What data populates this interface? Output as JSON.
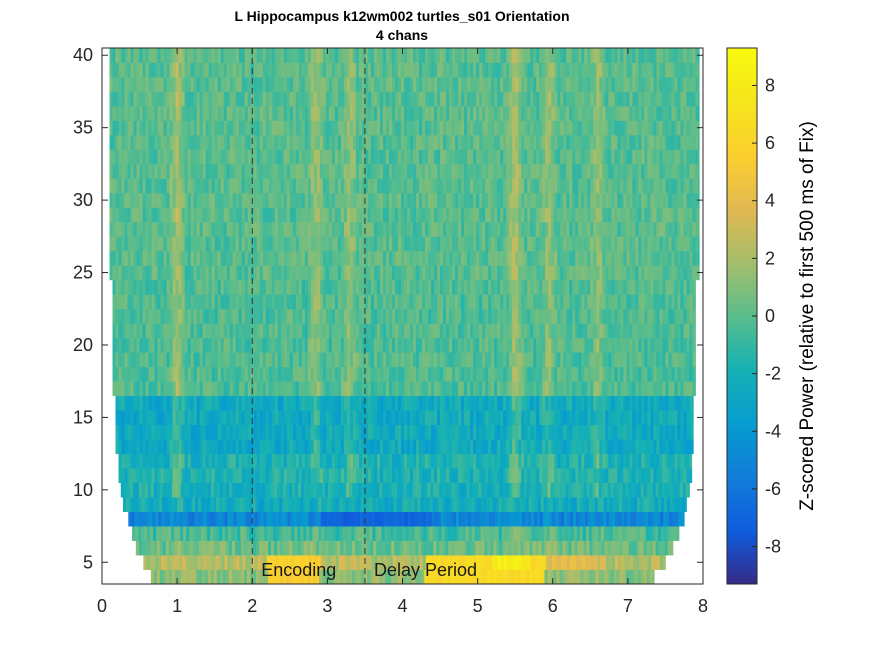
{
  "chart_data": {
    "type": "heatmap",
    "title_line1": "L Hippocampus k12wm002 turtles_s01 Orientation",
    "title_line2": "4 chans",
    "xlabel": "",
    "ylabel": "",
    "xlim": [
      0,
      8
    ],
    "ylim": [
      3.5,
      40.5
    ],
    "x_ticks": [
      0,
      1,
      2,
      3,
      4,
      5,
      6,
      7,
      8
    ],
    "y_ticks": [
      5,
      10,
      15,
      20,
      25,
      30,
      35,
      40
    ],
    "colorbar": {
      "label": "Z-scored Power (relative to first 500 ms of Fix)",
      "range": [
        -9.3,
        9.3
      ],
      "ticks": [
        -8,
        -6,
        -4,
        -2,
        0,
        2,
        4,
        6,
        8
      ],
      "colormap": "parula"
    },
    "event_lines": [
      {
        "x": 2.0,
        "label": "Encoding"
      },
      {
        "x": 3.5,
        "label": "Delay Period"
      }
    ],
    "frequency_bands": [
      {
        "freq_min": 3.5,
        "freq_max": 4.5,
        "x_start": 0.65,
        "x_end": 7.35,
        "base_value": 1.2
      },
      {
        "freq_min": 4.5,
        "freq_max": 5.5,
        "x_start": 0.55,
        "x_end": 7.5,
        "base_value": 2.3
      },
      {
        "freq_min": 5.5,
        "freq_max": 6.5,
        "x_start": 0.45,
        "x_end": 7.6,
        "base_value": 0.4
      },
      {
        "freq_min": 6.5,
        "freq_max": 7.5,
        "x_start": 0.4,
        "x_end": 7.68,
        "base_value": -0.6
      },
      {
        "freq_min": 7.5,
        "freq_max": 8.5,
        "x_start": 0.35,
        "x_end": 7.75,
        "base_value": -5.0
      },
      {
        "freq_min": 8.5,
        "freq_max": 9.5,
        "x_start": 0.28,
        "x_end": 7.78,
        "base_value": -2.4
      },
      {
        "freq_min": 9.5,
        "freq_max": 10.5,
        "x_start": 0.25,
        "x_end": 7.82,
        "base_value": -2.0
      },
      {
        "freq_min": 10.5,
        "freq_max": 12.5,
        "x_start": 0.22,
        "x_end": 7.85,
        "base_value": -1.8
      },
      {
        "freq_min": 12.5,
        "freq_max": 16.5,
        "x_start": 0.18,
        "x_end": 7.87,
        "base_value": -2.6
      },
      {
        "freq_min": 16.5,
        "freq_max": 24.5,
        "x_start": 0.14,
        "x_end": 7.9,
        "base_value": -0.3
      },
      {
        "freq_min": 24.5,
        "freq_max": 40.5,
        "x_start": 0.1,
        "x_end": 7.95,
        "base_value": -0.1
      }
    ],
    "hotspots": [
      {
        "x_min": 2.2,
        "x_max": 2.9,
        "freq_min": 3.5,
        "freq_max": 5.5,
        "value": 5.5
      },
      {
        "x_min": 4.3,
        "x_max": 5.9,
        "freq_min": 3.5,
        "freq_max": 5.5,
        "value": 6.5
      },
      {
        "x_min": 5.2,
        "x_max": 5.7,
        "freq_min": 4.5,
        "freq_max": 5.5,
        "value": 8.2
      },
      {
        "x_min": 3.3,
        "x_max": 3.9,
        "freq_min": 7.5,
        "freq_max": 8.5,
        "value": -8.6
      },
      {
        "x_min": 2.9,
        "x_max": 4.4,
        "freq_min": 7.5,
        "freq_max": 8.5,
        "value": -7.0
      },
      {
        "x_min": 6.0,
        "x_max": 6.6,
        "freq_min": 4.5,
        "freq_max": 5.5,
        "value": 4.0
      }
    ],
    "streaks": [
      {
        "x": 1.0,
        "value": 2.2
      },
      {
        "x": 2.85,
        "value": 1.8
      },
      {
        "x": 3.3,
        "value": 1.6
      },
      {
        "x": 5.5,
        "value": 2.4
      },
      {
        "x": 5.95,
        "value": 1.8
      },
      {
        "x": 6.6,
        "value": 1.5
      }
    ]
  }
}
